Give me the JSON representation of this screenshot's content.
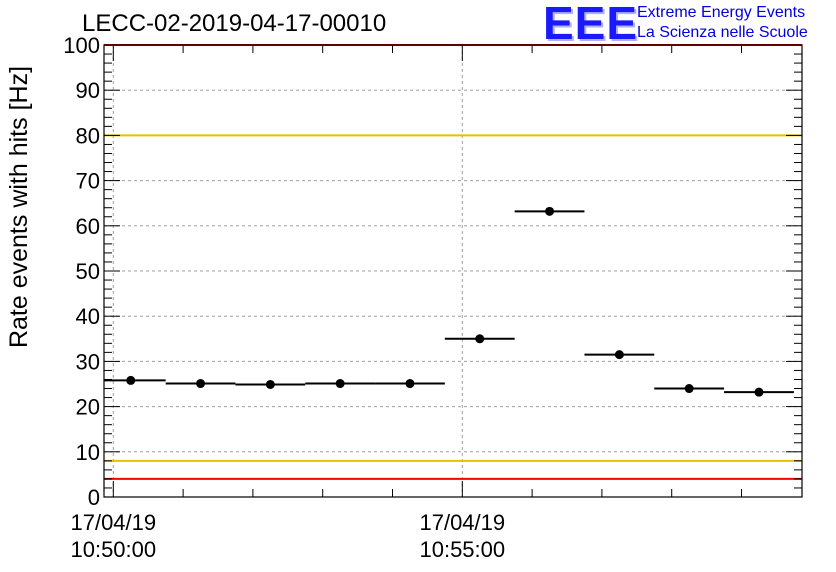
{
  "chart_data": {
    "type": "scatter",
    "title": "LECC-02-2019-04-17-00010",
    "ylabel": "Rate events with hits [Hz]",
    "xlabel": "",
    "ylim": [
      0,
      100
    ],
    "yticks": [
      0,
      10,
      20,
      30,
      40,
      50,
      60,
      70,
      80,
      90,
      100
    ],
    "xlim": [
      "10:49:52",
      "10:59:52"
    ],
    "xticks": [
      {
        "x": "10:50:00",
        "date": "17/04/19",
        "time": "10:50:00"
      },
      {
        "x": "10:55:00",
        "date": "17/04/19",
        "time": "10:55:00"
      }
    ],
    "grid": true,
    "series": [
      {
        "points": [
          {
            "x": "10:50:15",
            "x_from": "10:49:45",
            "x_to": "10:50:45",
            "y": 25.8
          },
          {
            "x": "10:51:15",
            "x_from": "10:50:45",
            "x_to": "10:51:45",
            "y": 25.1
          },
          {
            "x": "10:52:15",
            "x_from": "10:51:45",
            "x_to": "10:52:45",
            "y": 24.9
          },
          {
            "x": "10:53:15",
            "x_from": "10:52:45",
            "x_to": "10:53:45",
            "y": 25.1
          },
          {
            "x": "10:54:15",
            "x_from": "10:53:45",
            "x_to": "10:54:45",
            "y": 25.1
          },
          {
            "x": "10:55:15",
            "x_from": "10:54:45",
            "x_to": "10:55:45",
            "y": 35.0
          },
          {
            "x": "10:56:15",
            "x_from": "10:55:45",
            "x_to": "10:56:45",
            "y": 63.2
          },
          {
            "x": "10:57:15",
            "x_from": "10:56:45",
            "x_to": "10:57:45",
            "y": 31.5
          },
          {
            "x": "10:58:15",
            "x_from": "10:57:45",
            "x_to": "10:58:45",
            "y": 24.0
          },
          {
            "x": "10:59:15",
            "x_from": "10:58:45",
            "x_to": "10:59:45",
            "y": 23.2
          }
        ]
      }
    ],
    "reference_lines": [
      {
        "y": 100,
        "color": "#ff0000"
      },
      {
        "y": 80,
        "color": "#e8c000"
      },
      {
        "y": 8,
        "color": "#e8c000"
      },
      {
        "y": 4,
        "color": "#ff0000"
      }
    ]
  },
  "logo": {
    "text": "EEE",
    "line1": "Extreme Energy Events",
    "line2": "La Scienza nelle Scuole",
    "color": "#1a1aff"
  }
}
